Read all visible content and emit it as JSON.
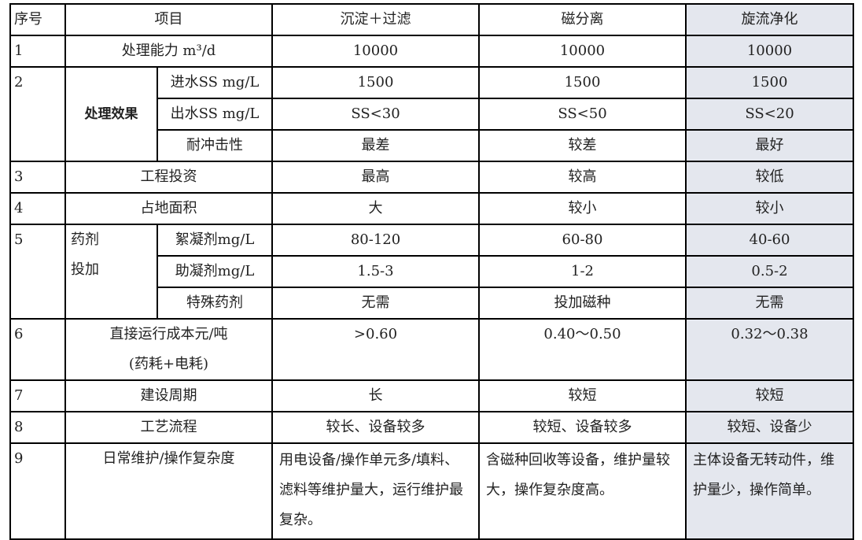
{
  "header": {
    "seq": "序号",
    "item": "项目",
    "methods": [
      "沉淀＋过滤",
      "磁分离",
      "旋流净化"
    ]
  },
  "highlight_color": "#e4e7ee",
  "rows": {
    "r1": {
      "seq": "1",
      "item": "处理能力 m³/d",
      "values": [
        "10000",
        "10000",
        "10000"
      ]
    },
    "r2": {
      "seq": "2",
      "group": "处理效果",
      "sub": [
        {
          "item": "进水SS mg/L",
          "values": [
            "1500",
            "1500",
            "1500"
          ]
        },
        {
          "item": "出水SS mg/L",
          "values": [
            "SS<30",
            "SS<50",
            "SS<20"
          ]
        },
        {
          "item": "耐冲击性",
          "values": [
            "最差",
            "较差",
            "最好"
          ]
        }
      ]
    },
    "r3": {
      "seq": "3",
      "item": "工程投资",
      "values": [
        "最高",
        "较高",
        "较低"
      ]
    },
    "r4": {
      "seq": "4",
      "item": "占地面积",
      "values": [
        "大",
        "较小",
        "较小"
      ]
    },
    "r5": {
      "seq": "5",
      "group_line1": "药剂",
      "group_line2": "投加",
      "sub": [
        {
          "item": "絮凝剂mg/L",
          "values": [
            "80-120",
            "60-80",
            "40-60"
          ]
        },
        {
          "item": "助凝剂mg/L",
          "values": [
            "1.5-3",
            "1-2",
            "0.5-2"
          ]
        },
        {
          "item": "特殊药剂",
          "values": [
            "无需",
            "投加磁种",
            "无需"
          ]
        }
      ]
    },
    "r6": {
      "seq": "6",
      "item_line1": "直接运行成本元/吨",
      "item_line2": "(药耗+电耗)",
      "values": [
        ">0.60",
        "0.40～0.50",
        "0.32～0.38"
      ]
    },
    "r7": {
      "seq": "7",
      "item": "建设周期",
      "values": [
        "长",
        "较短",
        "较短"
      ]
    },
    "r8": {
      "seq": "8",
      "item": "工艺流程",
      "values": [
        "较长、设备较多",
        "较短、设备较多",
        "较短、设备少"
      ]
    },
    "r9": {
      "seq": "9",
      "item": "日常维护/操作复杂度",
      "values": [
        "用电设备/操作单元多/填料、滤料等维护量大，运行维护最复杂。",
        "含磁种回收等设备，维护量较大，操作复杂度高。",
        "主体设备无转动件，维护量少，操作简单。"
      ]
    }
  }
}
